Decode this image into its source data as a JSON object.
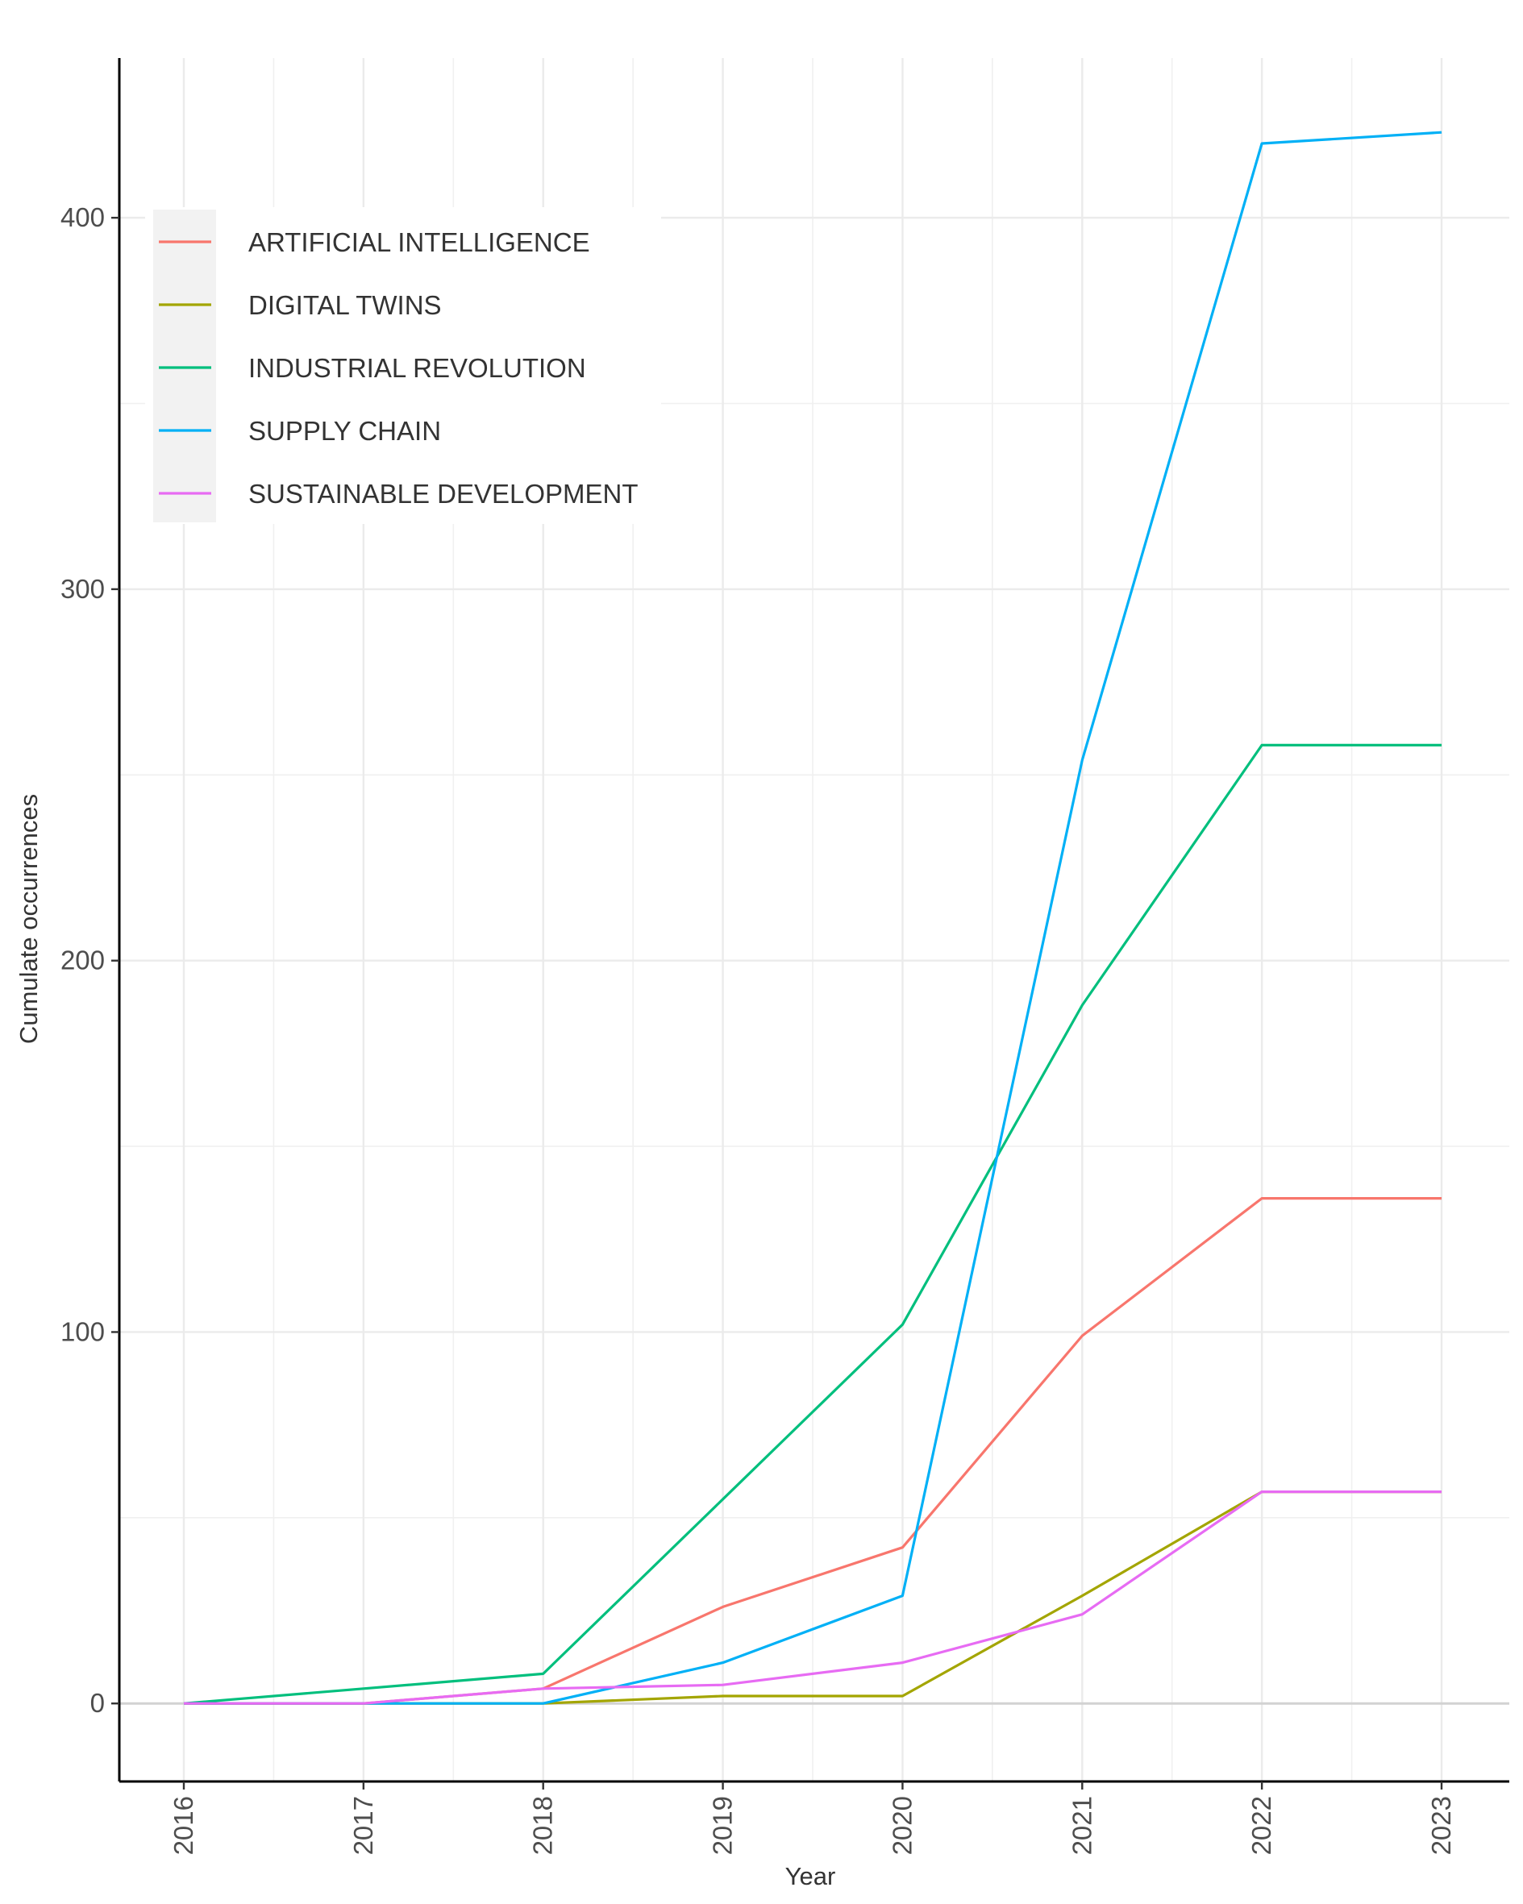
{
  "chart_data": {
    "type": "line",
    "title": "",
    "xlabel": "Year",
    "ylabel": "Cumulate occurrences",
    "x": [
      "2016",
      "2017",
      "2018",
      "2019",
      "2020",
      "2021",
      "2022",
      "2023"
    ],
    "ylim": [
      -21,
      443
    ],
    "yticks": [
      0,
      100,
      200,
      300,
      400
    ],
    "grid": true,
    "legend_position": "top-left",
    "series": [
      {
        "name": "ARTIFICIAL INTELLIGENCE",
        "color": "#F8766D",
        "values": [
          0,
          0,
          4,
          26,
          42,
          99,
          136,
          136
        ]
      },
      {
        "name": "DIGITAL TWINS",
        "color": "#A3A500",
        "values": [
          0,
          0,
          0,
          2,
          2,
          29,
          57,
          57
        ]
      },
      {
        "name": "INDUSTRIAL REVOLUTION",
        "color": "#00BF7D",
        "values": [
          0,
          4,
          8,
          55,
          102,
          188,
          258,
          258
        ]
      },
      {
        "name": "SUPPLY CHAIN",
        "color": "#00B0F6",
        "values": [
          0,
          0,
          0,
          11,
          29,
          254,
          420,
          423
        ]
      },
      {
        "name": "SUSTAINABLE DEVELOPMENT",
        "color": "#E76BF3",
        "values": [
          0,
          0,
          4,
          5,
          11,
          24,
          57,
          57
        ]
      }
    ]
  }
}
